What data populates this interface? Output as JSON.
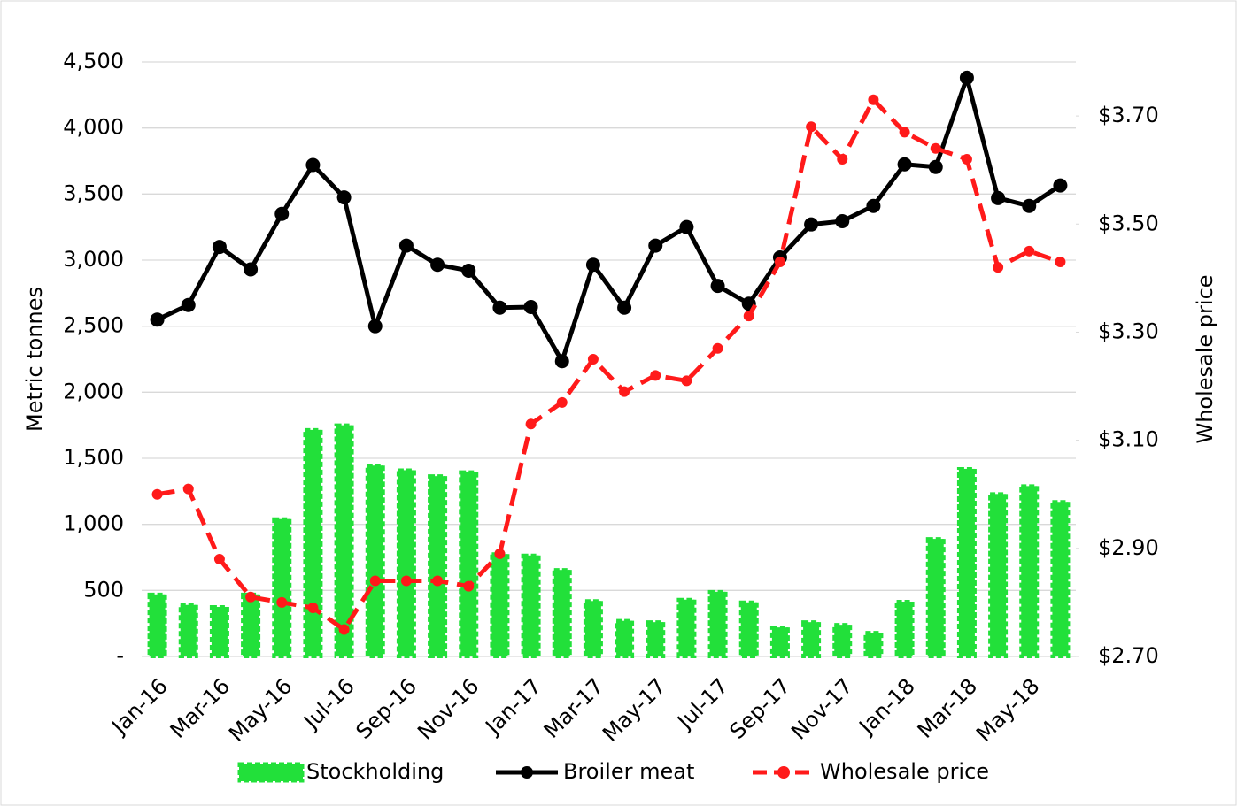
{
  "chart_data": {
    "type": "combo",
    "categories": [
      "Jan-16",
      null,
      "Mar-16",
      null,
      "May-16",
      null,
      "Jul-16",
      null,
      "Sep-16",
      null,
      "Nov-16",
      null,
      "Jan-17",
      null,
      "Mar-17",
      null,
      "May-17",
      null,
      "Jul-17",
      null,
      "Sep-17",
      null,
      "Nov-17",
      null,
      "Jan-18",
      null,
      "Mar-18",
      null,
      "May-18",
      null
    ],
    "y_label": "Metric tonnes",
    "y2_label": "Wholesale price",
    "ylim": [
      0,
      4500
    ],
    "yticks": [
      {
        "value": 0,
        "label": "-"
      },
      500,
      {
        "value": 1000,
        "label": "1,000"
      },
      {
        "value": 1500,
        "label": "1,500"
      },
      {
        "value": 2000,
        "label": "2,000"
      },
      {
        "value": 2500,
        "label": "2,500"
      },
      {
        "value": 3000,
        "label": "3,000"
      },
      {
        "value": 3500,
        "label": "3,500"
      },
      {
        "value": 4000,
        "label": "4,000"
      },
      {
        "value": 4500,
        "label": "4,500"
      }
    ],
    "y2lim": [
      2.7,
      3.8
    ],
    "y2ticks": [
      {
        "value": 2.7,
        "label": "$2.70"
      },
      {
        "value": 2.9,
        "label": "$2.90"
      },
      {
        "value": 3.1,
        "label": "$3.10"
      },
      {
        "value": 3.3,
        "label": "$3.30"
      },
      {
        "value": 3.5,
        "label": "$3.50"
      },
      {
        "value": 3.7,
        "label": "$3.70"
      }
    ],
    "grid": true,
    "legend": "bottom",
    "series": [
      {
        "name": "Stockholding",
        "kind": "bar",
        "color": "#22e03a",
        "values": [
          470,
          390,
          375,
          470,
          1040,
          1715,
          1750,
          1445,
          1410,
          1365,
          1395,
          775,
          765,
          655,
          420,
          270,
          260,
          430,
          490,
          410,
          220,
          260,
          240,
          180,
          415,
          890,
          1420,
          1230,
          1290,
          1170
        ]
      },
      {
        "name": "Broiler meat",
        "kind": "line",
        "color": "#000000",
        "values": [
          2550,
          2660,
          3100,
          2930,
          3350,
          3720,
          3475,
          2500,
          3110,
          2965,
          2920,
          2640,
          2645,
          2235,
          2965,
          2640,
          3110,
          3250,
          2805,
          2670,
          3020,
          3270,
          3295,
          3410,
          3725,
          3705,
          4380,
          3470,
          3410,
          3565
        ]
      },
      {
        "name": "Wholesale price",
        "kind": "dashed-line",
        "axis": "y2",
        "color": "#ff1a1a",
        "values": [
          3.0,
          3.01,
          2.88,
          2.81,
          2.8,
          2.79,
          2.75,
          2.84,
          2.84,
          2.84,
          2.83,
          2.89,
          3.13,
          3.17,
          3.25,
          3.19,
          3.22,
          3.21,
          3.27,
          3.33,
          3.43,
          3.68,
          3.62,
          3.73,
          3.67,
          3.64,
          3.62,
          3.42,
          3.45,
          3.43
        ]
      }
    ]
  }
}
